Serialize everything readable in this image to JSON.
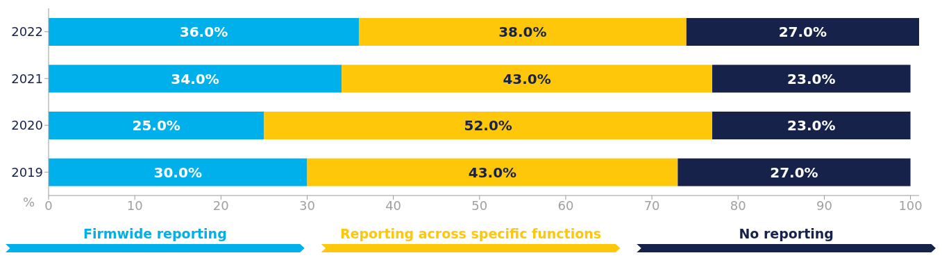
{
  "chart_data": {
    "type": "bar",
    "orientation": "horizontal",
    "stacked": true,
    "xlabel": "%",
    "categories": [
      "2022",
      "2021",
      "2020",
      "2019"
    ],
    "series": [
      {
        "name": "Firmwide reporting",
        "color": "#00b0ea",
        "values": [
          36,
          34,
          25,
          30
        ],
        "value_labels": [
          "36.0%",
          "34.0%",
          "25.0%",
          "30.0%"
        ]
      },
      {
        "name": "Reporting across specific functions",
        "color": "#ffc709",
        "values": [
          38,
          43,
          52,
          43
        ],
        "value_labels": [
          "38.0%",
          "43.0%",
          "52.0%",
          "43.0%"
        ]
      },
      {
        "name": "No reporting",
        "color": "#16224a",
        "values": [
          27,
          23,
          23,
          27
        ],
        "value_labels": [
          "27.0%",
          "23.0%",
          "23.0%",
          "27.0%"
        ]
      }
    ],
    "xlim": [
      0,
      101
    ],
    "xticks": [
      0,
      10,
      20,
      30,
      40,
      50,
      60,
      70,
      80,
      90,
      100
    ],
    "legend": "bottom",
    "grid": false
  }
}
